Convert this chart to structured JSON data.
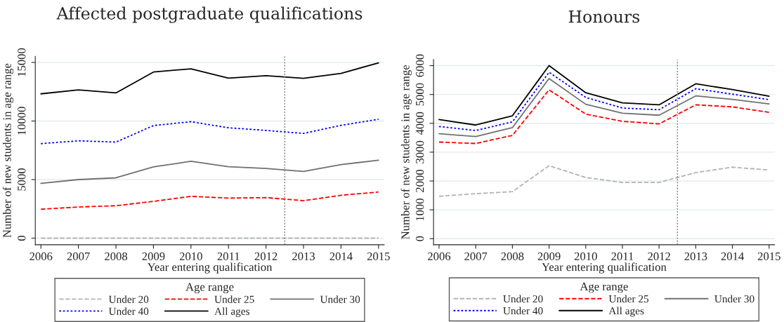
{
  "chart_data": [
    {
      "type": "line",
      "title": "Affected postgraduate qualifications",
      "xlabel": "Year entering qualification",
      "ylabel": "Number of new students in age range",
      "legend_title": "Age range",
      "legend": "bottom",
      "grid": "y",
      "x": [
        2006,
        2007,
        2008,
        2009,
        2010,
        2011,
        2012,
        2013,
        2014,
        2015
      ],
      "xlim": [
        2005.85,
        2015.15
      ],
      "xticks": [
        2006,
        2007,
        2008,
        2009,
        2010,
        2011,
        2012,
        2013,
        2014,
        2015
      ],
      "ylim": [
        -560,
        15520
      ],
      "yticks": [
        0,
        5000,
        10000,
        15000
      ],
      "ref_lines": [
        {
          "axis": "x",
          "value": 2012.5,
          "color": "#808080",
          "line_style": "dotted"
        }
      ],
      "series": [
        {
          "name": "Under 20",
          "color": "#b4b4b4",
          "line_style": "dashed",
          "values": [
            0,
            0,
            0,
            0,
            0,
            0,
            0,
            0,
            0,
            0
          ]
        },
        {
          "name": "Under 25",
          "color": "#ff0000",
          "line_style": "dashed",
          "values": [
            2470,
            2660,
            2770,
            3140,
            3570,
            3420,
            3460,
            3200,
            3660,
            3940
          ]
        },
        {
          "name": "Under 30",
          "color": "#707070",
          "line_style": "solid",
          "values": [
            4680,
            5000,
            5150,
            6080,
            6560,
            6100,
            5950,
            5690,
            6280,
            6650
          ]
        },
        {
          "name": "Under 40",
          "color": "#0000ff",
          "line_style": "dotted",
          "values": [
            8070,
            8310,
            8200,
            9610,
            9940,
            9420,
            9200,
            8940,
            9630,
            10150
          ]
        },
        {
          "name": "All ages",
          "color": "#000000",
          "line_style": "solid",
          "values": [
            12320,
            12660,
            12400,
            14180,
            14460,
            13660,
            13870,
            13640,
            14070,
            14960
          ]
        }
      ]
    },
    {
      "type": "line",
      "title": "Honours",
      "xlabel": "Year entering qualification",
      "ylabel": "Number of new students in age range",
      "legend_title": "Age range",
      "legend": "bottom",
      "grid": "y",
      "x": [
        2006,
        2007,
        2008,
        2009,
        2010,
        2011,
        2012,
        2013,
        2014,
        2015
      ],
      "xlim": [
        2005.85,
        2015.15
      ],
      "xticks": [
        2006,
        2007,
        2008,
        2009,
        2010,
        2011,
        2012,
        2013,
        2014,
        2015
      ],
      "ylim": [
        -210,
        6210
      ],
      "yticks": [
        0,
        1000,
        2000,
        3000,
        4000,
        5000,
        6000
      ],
      "ref_lines": [
        {
          "axis": "x",
          "value": 2012.5,
          "color": "#808080",
          "line_style": "dotted"
        }
      ],
      "series": [
        {
          "name": "Under 20",
          "color": "#b4b4b4",
          "line_style": "dashed",
          "values": [
            1470,
            1560,
            1630,
            2530,
            2120,
            1950,
            1950,
            2290,
            2480,
            2380
          ]
        },
        {
          "name": "Under 25",
          "color": "#ff0000",
          "line_style": "dashed",
          "values": [
            3350,
            3300,
            3580,
            5160,
            4320,
            4070,
            3980,
            4640,
            4570,
            4380
          ]
        },
        {
          "name": "Under 30",
          "color": "#707070",
          "line_style": "solid",
          "values": [
            3640,
            3540,
            3850,
            5550,
            4660,
            4350,
            4280,
            4950,
            4830,
            4670
          ]
        },
        {
          "name": "Under 40",
          "color": "#0000ff",
          "line_style": "dotted",
          "values": [
            3890,
            3750,
            4050,
            5770,
            4900,
            4530,
            4470,
            5200,
            5010,
            4820
          ]
        },
        {
          "name": "All ages",
          "color": "#000000",
          "line_style": "solid",
          "values": [
            4130,
            3940,
            4260,
            6000,
            5060,
            4710,
            4640,
            5370,
            5170,
            4940
          ]
        }
      ]
    }
  ]
}
